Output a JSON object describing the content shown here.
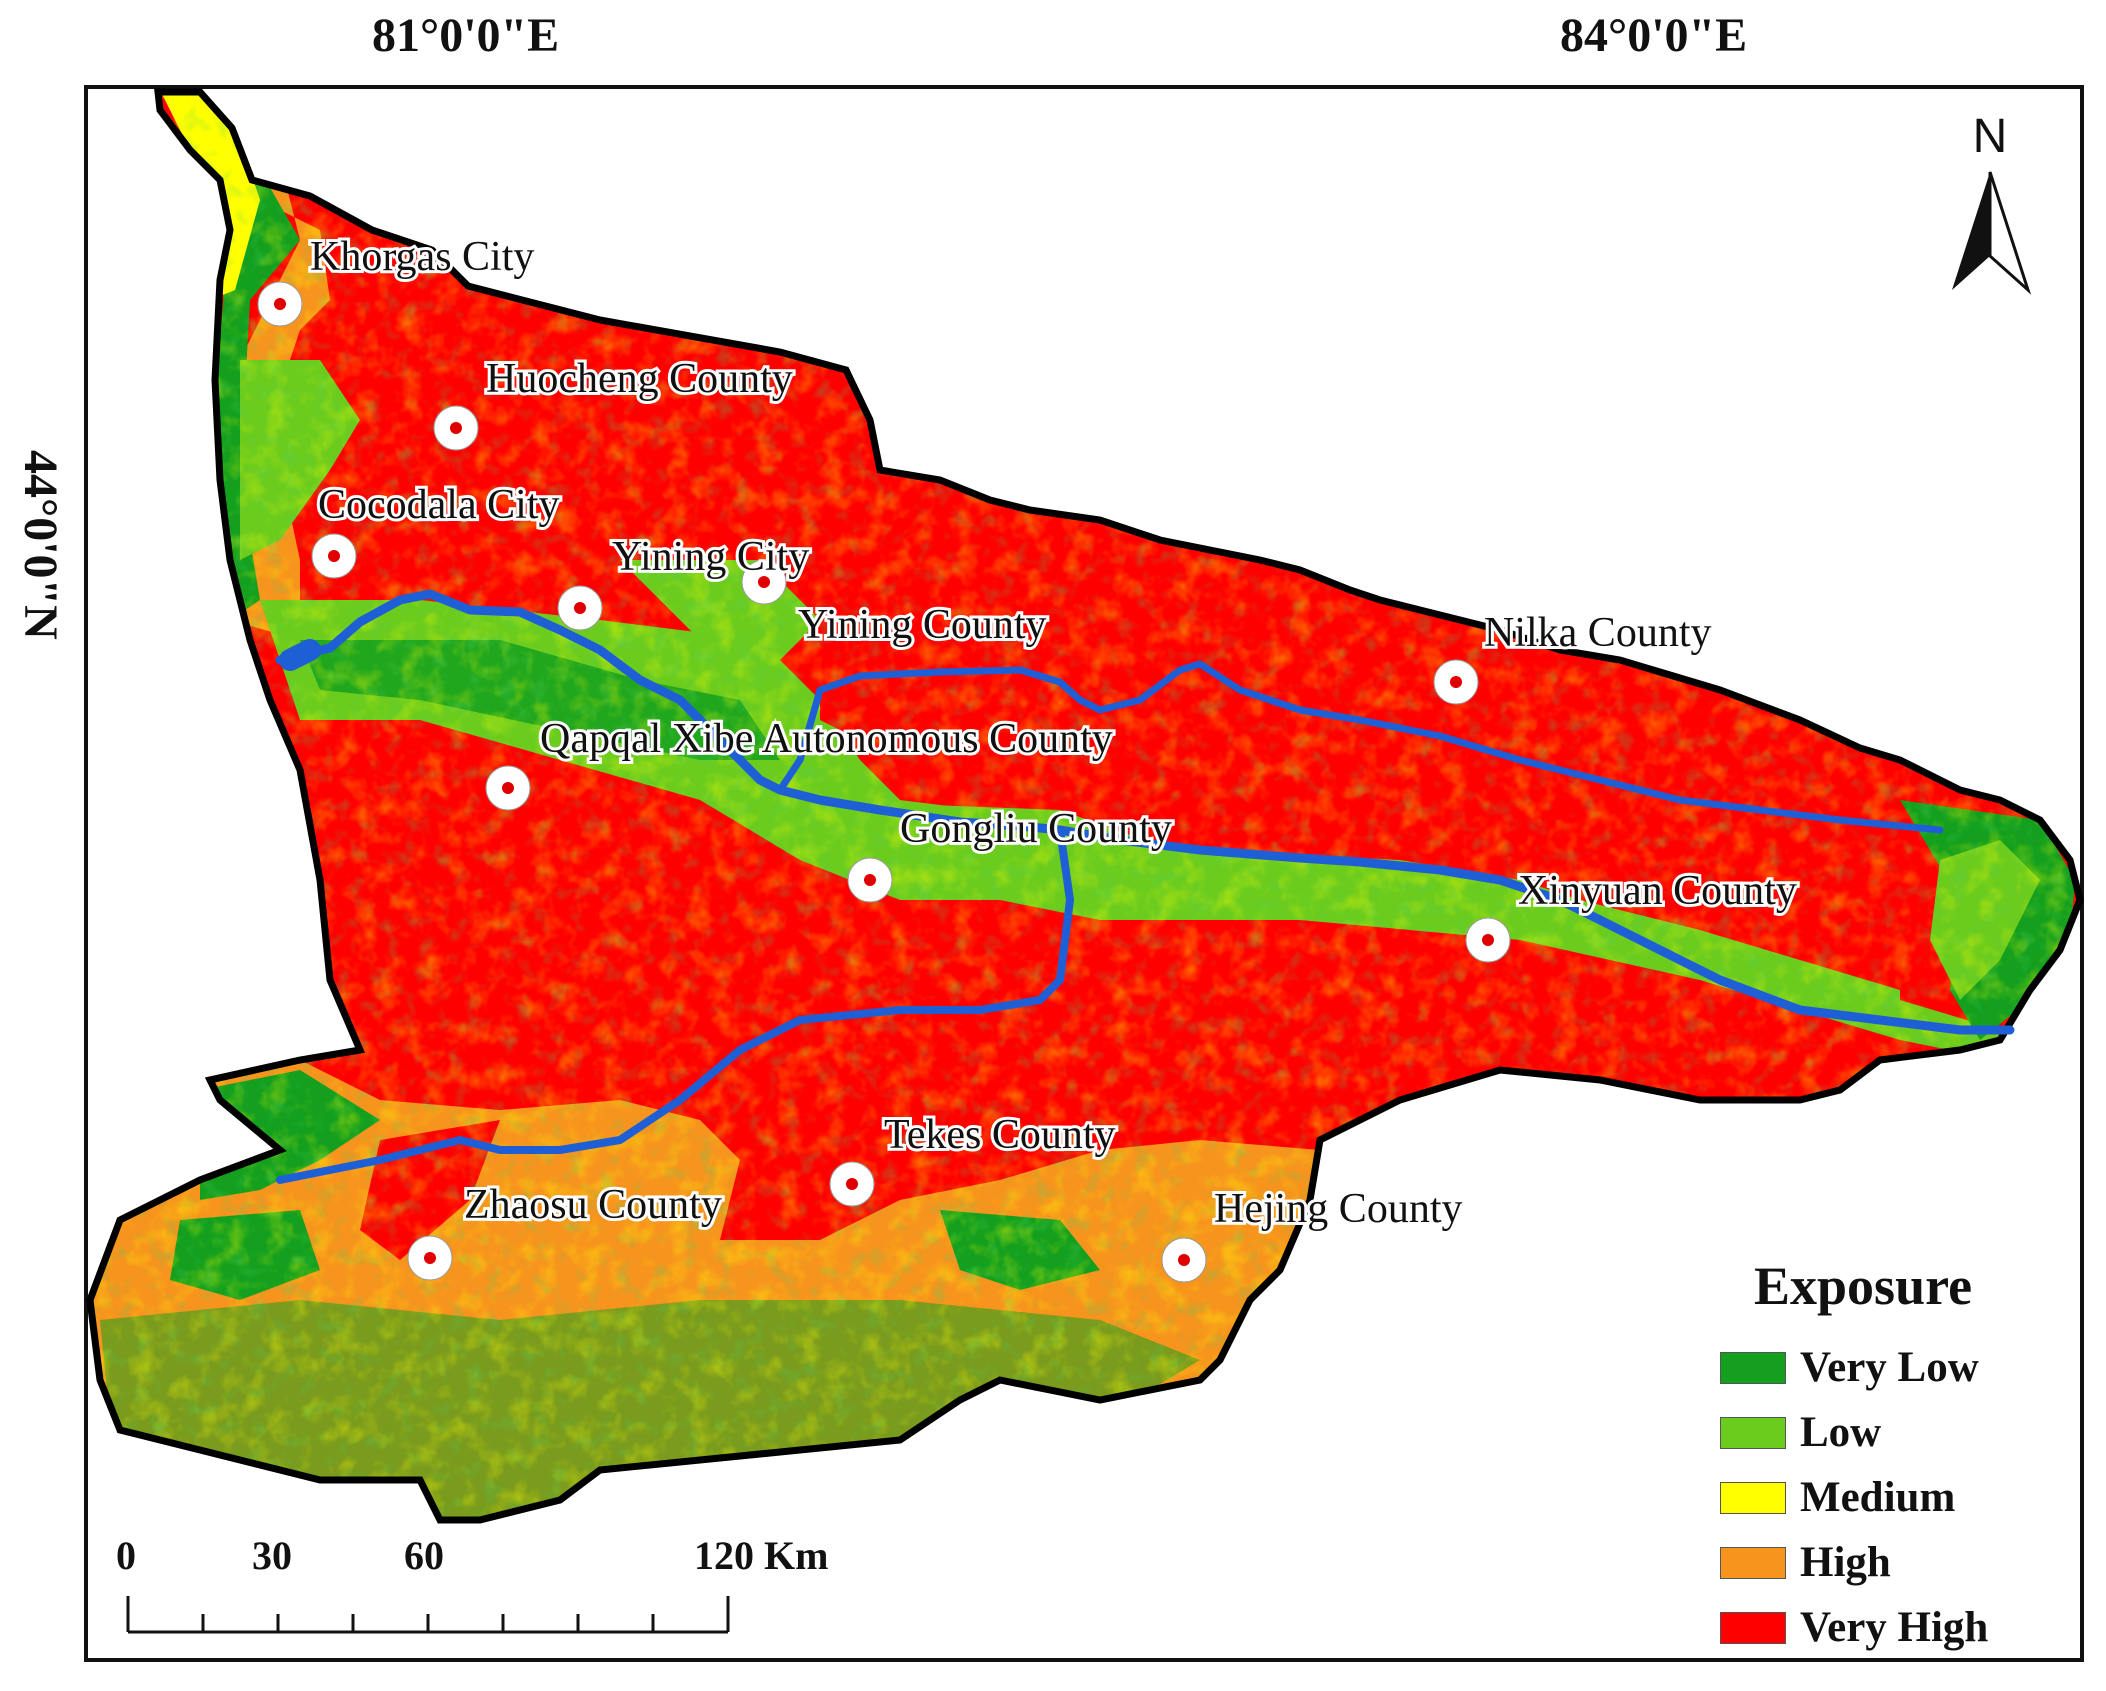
{
  "axes": {
    "lon_labels": [
      "81°0'0\"E",
      "84°0'0\"E"
    ],
    "lat_label": "44°0'0\"N"
  },
  "north_arrow": {
    "label": "N",
    "icon": "north-arrow-icon"
  },
  "places": [
    "Khorgas City",
    "Huocheng County",
    "Cocodala City",
    "Yining City",
    "Yining County",
    "Nilka County",
    "Qapqal Xibe Autonomous County",
    "Gongliu County",
    "Xinyuan County",
    "Tekes County",
    "Zhaosu County",
    "Hejing County"
  ],
  "legend": {
    "title": "Exposure",
    "items": [
      {
        "label": "Very Low",
        "color": "#14a01e"
      },
      {
        "label": "Low",
        "color": "#6ccc1e"
      },
      {
        "label": "Medium",
        "color": "#ffff00"
      },
      {
        "label": "High",
        "color": "#f7941d"
      },
      {
        "label": "Very High",
        "color": "#ff0000"
      }
    ]
  },
  "scale_bar": {
    "ticks": [
      "0",
      "30",
      "60",
      "120 Km"
    ]
  },
  "colors": {
    "river": "#1f5fd6",
    "boundary": "#000000",
    "marker_ring": "#ffffff",
    "marker_dot": "#e00000"
  }
}
